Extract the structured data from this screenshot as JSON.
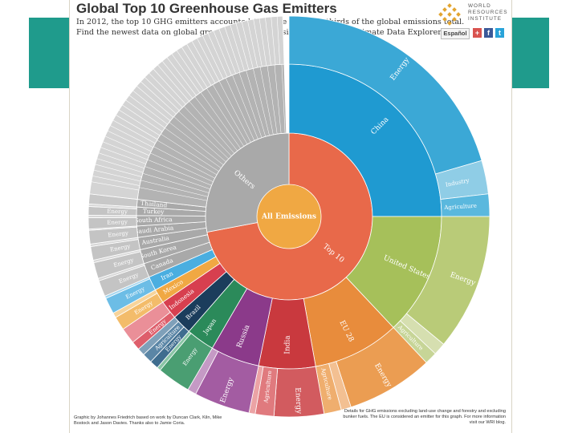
{
  "header": {
    "title": "Global Top 10 Greenhouse Gas Emitters",
    "subtitle_line1": "In 2012, the top 10 GHG emitters accounted for more than two thirds of the global emissions total.",
    "subtitle_line2": "Find the newest data on global greenhouse gas emissions on the CAIT Climate Data Explorer."
  },
  "branding": {
    "logo_line1": "WORLD",
    "logo_line2": "RESOURCES",
    "logo_line3": "INSTITUTE",
    "language_button": "Español",
    "share_plus": "+",
    "share_facebook": "f",
    "share_twitter": "t"
  },
  "footer": {
    "credit": "Graphic by Johannes Friedrich based on work by Duncan Clark, Kiln, Mike Bostock and Jason Davies. Thanks also to Jamie Coria.",
    "note": "Details for GHG emissions excluding land-use change and forestry and excluding bunker fuels. The EU is considered an emitter for this graph. For more information visit our WRI blog."
  },
  "colors": {
    "teal_frame": "#1f9b8c",
    "all_emissions": "#f0a843",
    "top10": "#e8694a",
    "others": "#a9a9a9"
  },
  "chart_data": {
    "type": "sunburst",
    "center_label": "All Emissions",
    "ring1": [
      {
        "name": "Top 10",
        "share": 0.72,
        "color": "#e8694a"
      },
      {
        "name": "Others",
        "share": 0.28,
        "color": "#a9a9a9"
      }
    ],
    "ring2": [
      {
        "name": "China",
        "share": 0.25,
        "color": "#1f9ad1",
        "show": true
      },
      {
        "name": "United States",
        "share": 0.13,
        "color": "#a6c05a",
        "show": true
      },
      {
        "name": "EU 28",
        "share": 0.092,
        "color": "#e88c3c",
        "show": true
      },
      {
        "name": "India",
        "share": 0.06,
        "color": "#c9393e",
        "show": true
      },
      {
        "name": "Russia",
        "share": 0.052,
        "color": "#8b3a8a",
        "show": true
      },
      {
        "name": "Japan",
        "share": 0.03,
        "color": "#2b8a5a",
        "show": true
      },
      {
        "name": "Brazil",
        "share": 0.021,
        "color": "#1b3d5c",
        "show": true
      },
      {
        "name": "Indonesia",
        "share": 0.02,
        "color": "#d73f4f",
        "show": true
      },
      {
        "name": "Mexico",
        "share": 0.015,
        "color": "#f0a843",
        "show": true
      },
      {
        "name": "Iran",
        "share": 0.015,
        "color": "#4aaee0",
        "show": true
      },
      {
        "name": "Canada",
        "share": 0.015,
        "color": "#a9a9a9",
        "show": true
      },
      {
        "name": "South Korea",
        "share": 0.015,
        "color": "#a9a9a9",
        "show": true
      },
      {
        "name": "Australia",
        "share": 0.013,
        "color": "#a9a9a9",
        "show": true
      },
      {
        "name": "Saudi Arabia",
        "share": 0.012,
        "color": "#a9a9a9",
        "show": true
      },
      {
        "name": "South Africa",
        "share": 0.011,
        "color": "#a9a9a9",
        "show": true
      },
      {
        "name": "Turkey",
        "share": 0.009,
        "color": "#a9a9a9",
        "show": true
      },
      {
        "name": "Thailand",
        "share": 0.008,
        "color": "#a9a9a9",
        "show": true
      },
      {
        "name": "",
        "share": 0.227,
        "color": "#b3b3b3",
        "show": false
      }
    ],
    "ring3": [
      {
        "name": "Energy",
        "share": 0.205,
        "color": "#3ba8d6",
        "label": true
      },
      {
        "name": "Industry",
        "share": 0.027,
        "color": "#8fcde6",
        "label": true
      },
      {
        "name": "Agriculture",
        "share": 0.018,
        "color": "#5ab8de",
        "label": true
      },
      {
        "name": "Energy",
        "share": 0.11,
        "color": "#b9cb78",
        "label": true
      },
      {
        "name": "",
        "share": 0.01,
        "color": "#d6dfb0",
        "label": false
      },
      {
        "name": "Agriculture",
        "share": 0.01,
        "color": "#c7d597",
        "label": true
      },
      {
        "name": "Energy",
        "share": 0.07,
        "color": "#eb9d52",
        "label": true
      },
      {
        "name": "",
        "share": 0.008,
        "color": "#f3c092",
        "label": false
      },
      {
        "name": "Agriculture",
        "share": 0.014,
        "color": "#efae6e",
        "label": true
      },
      {
        "name": "Energy",
        "share": 0.04,
        "color": "#d25b5f",
        "label": true
      },
      {
        "name": "Agriculture",
        "share": 0.015,
        "color": "#e07a7e",
        "label": true
      },
      {
        "name": "",
        "share": 0.005,
        "color": "#eba3a5",
        "label": false
      },
      {
        "name": "Energy",
        "share": 0.045,
        "color": "#a35ca2",
        "label": true
      },
      {
        "name": "",
        "share": 0.007,
        "color": "#c59ac5",
        "label": false
      },
      {
        "name": "Energy",
        "share": 0.027,
        "color": "#4a9e72",
        "label": true
      },
      {
        "name": "",
        "share": 0.003,
        "color": "#8ac5a6",
        "label": false
      },
      {
        "name": "Energy",
        "share": 0.007,
        "color": "#3f6d8f",
        "label": true
      },
      {
        "name": "Agriculture",
        "share": 0.008,
        "color": "#5b86a6",
        "label": true
      },
      {
        "name": "",
        "share": 0.006,
        "color": "#7fa0b9",
        "label": false
      },
      {
        "name": "Energy",
        "share": 0.007,
        "color": "#de5e6b",
        "label": true
      },
      {
        "name": "",
        "share": 0.013,
        "color": "#ea8f98",
        "label": false
      },
      {
        "name": "Energy",
        "share": 0.011,
        "color": "#f3bc6a",
        "label": true
      },
      {
        "name": "",
        "share": 0.004,
        "color": "#f7d49b",
        "label": false
      },
      {
        "name": "Energy",
        "share": 0.013,
        "color": "#6cbde6",
        "label": true
      },
      {
        "name": "",
        "share": 0.002,
        "color": "#a6d6ee",
        "label": false
      },
      {
        "name": "Energy",
        "share": 0.013,
        "color": "#c4c4c4",
        "label": true
      },
      {
        "name": "",
        "share": 0.002,
        "color": "#d8d8d8",
        "label": false
      },
      {
        "name": "Energy",
        "share": 0.013,
        "color": "#c4c4c4",
        "label": true
      },
      {
        "name": "",
        "share": 0.002,
        "color": "#d8d8d8",
        "label": false
      },
      {
        "name": "Energy",
        "share": 0.011,
        "color": "#c4c4c4",
        "label": true
      },
      {
        "name": "",
        "share": 0.002,
        "color": "#d8d8d8",
        "label": false
      },
      {
        "name": "Energy",
        "share": 0.011,
        "color": "#c4c4c4",
        "label": true
      },
      {
        "name": "",
        "share": 0.001,
        "color": "#d8d8d8",
        "label": false
      },
      {
        "name": "Energy",
        "share": 0.009,
        "color": "#c4c4c4",
        "label": true
      },
      {
        "name": "",
        "share": 0.002,
        "color": "#d8d8d8",
        "label": false
      },
      {
        "name": "Energy",
        "share": 0.007,
        "color": "#c4c4c4",
        "label": true
      },
      {
        "name": "",
        "share": 0.002,
        "color": "#d8d8d8",
        "label": false
      },
      {
        "name": "",
        "share": 0.008,
        "color": "#c8c8c8",
        "label": false
      },
      {
        "name": "",
        "share": 0.227,
        "color": "#d4d4d4",
        "label": false
      }
    ]
  }
}
